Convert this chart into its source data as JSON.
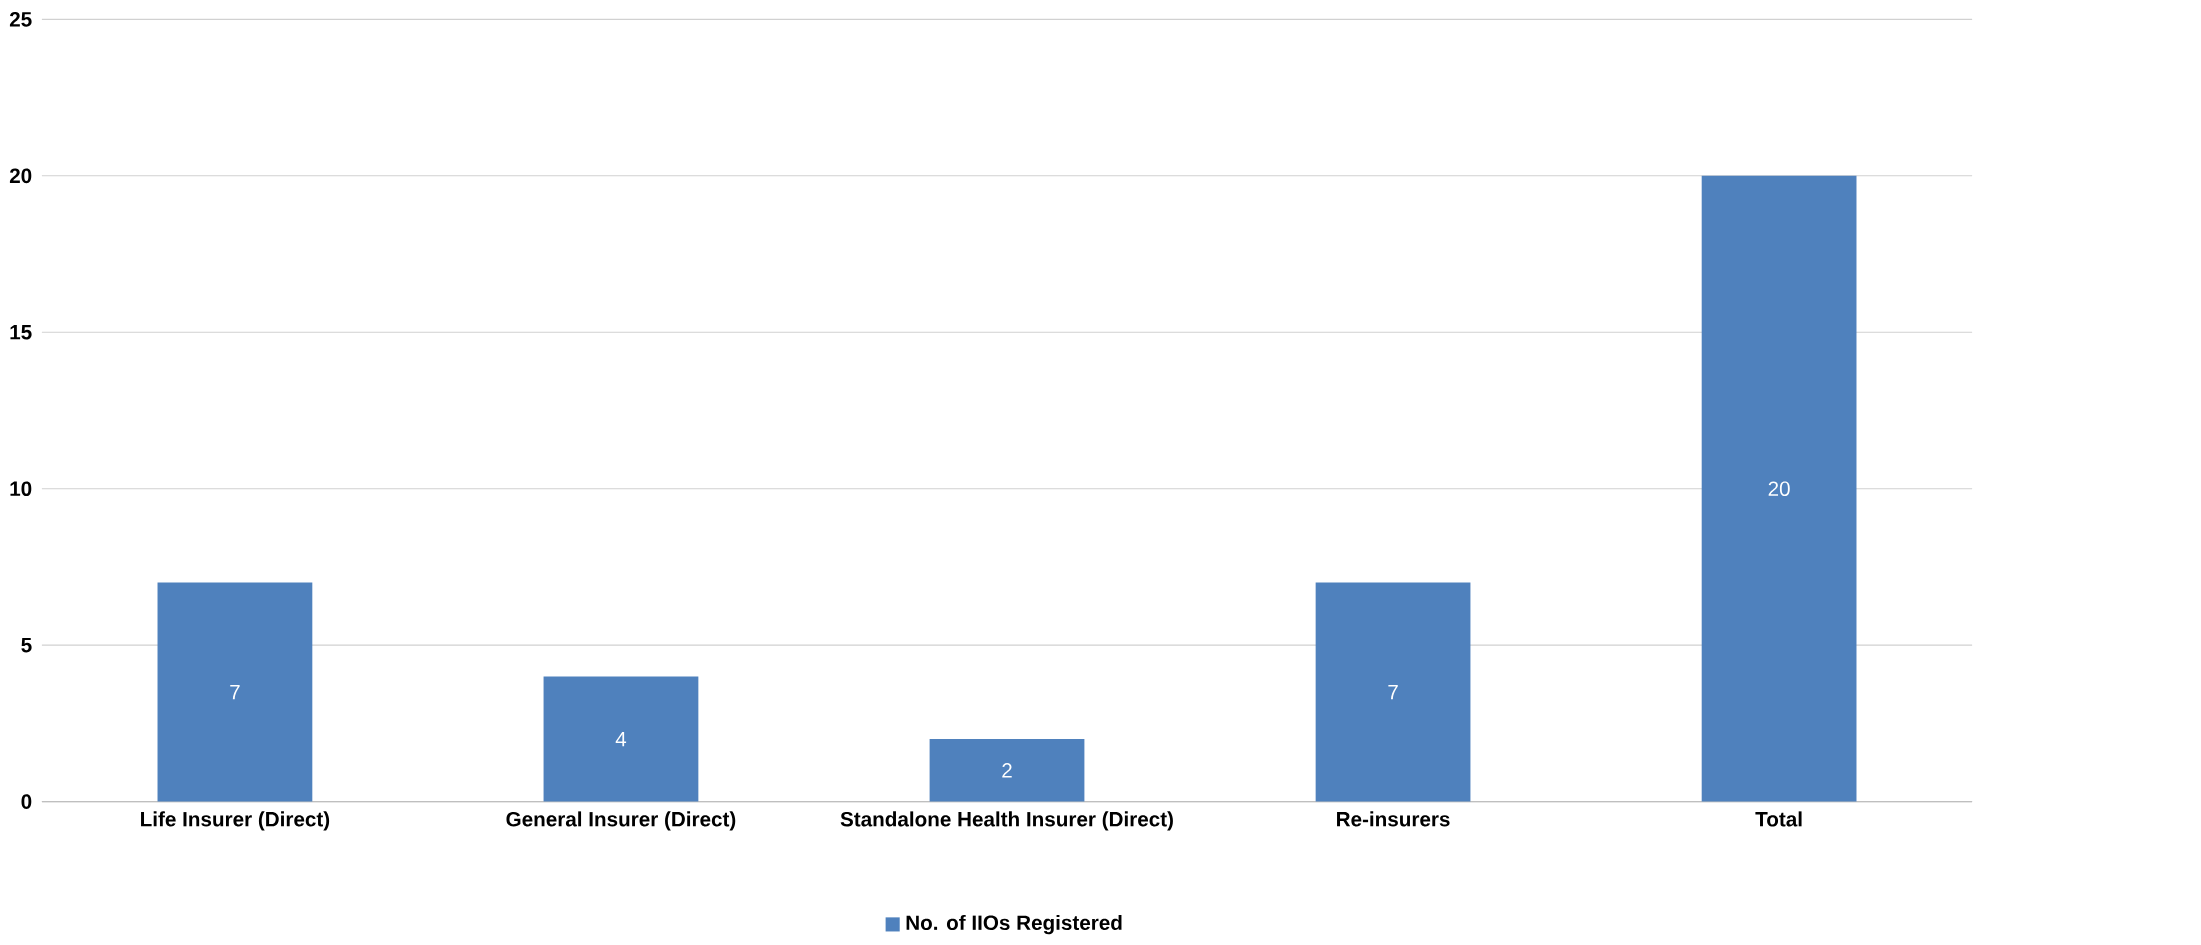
{
  "chart_data": {
    "type": "bar",
    "categories": [
      "Life Insurer (Direct)",
      "General Insurer (Direct)",
      "Standalone Health Insurer (Direct)",
      "Re-insurers",
      "Total"
    ],
    "series": [
      {
        "name": "No. of IIOs Registered",
        "color": "#4f81bd",
        "values": [
          7,
          4,
          2,
          7,
          20
        ]
      }
    ],
    "ylim": [
      0,
      25
    ],
    "yticks": [
      0,
      5,
      10,
      15,
      20,
      25
    ],
    "grid": "y",
    "legend": "bottom",
    "data_labels": true
  }
}
